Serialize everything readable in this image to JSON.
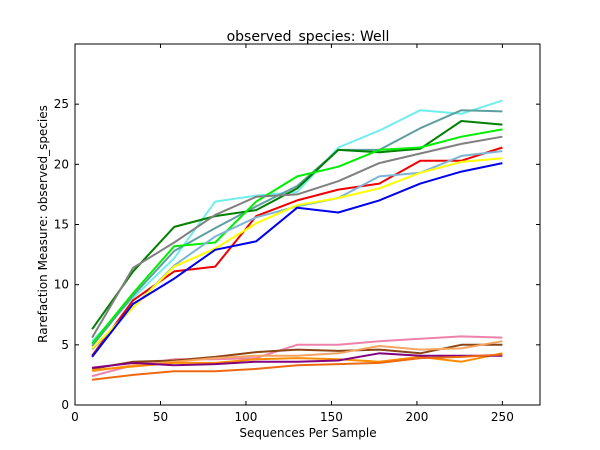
{
  "chart_data": {
    "type": "line",
    "title": "observed_species: Well",
    "xlabel": "Sequences Per Sample",
    "ylabel": "Rarefaction Measure: observed_species",
    "xlim": [
      0,
      272
    ],
    "ylim": [
      0,
      30
    ],
    "xticks": [
      0,
      50,
      100,
      150,
      200,
      250
    ],
    "yticks": [
      0,
      5,
      10,
      15,
      20,
      25
    ],
    "grid": false,
    "x": [
      10,
      34,
      58,
      82,
      106,
      130,
      154,
      178,
      202,
      226,
      250
    ],
    "series": [
      {
        "color": "#70eeee",
        "values": [
          5.3,
          8.9,
          12.2,
          16.9,
          17.4,
          17.7,
          21.4,
          22.8,
          24.5,
          24.2,
          25.3
        ]
      },
      {
        "color": "#5f9ea0",
        "values": [
          4.9,
          9.1,
          12.8,
          14.7,
          16.5,
          18.2,
          21.2,
          21.2,
          23.0,
          24.5,
          24.4
        ]
      },
      {
        "color": "#008000",
        "values": [
          6.3,
          11.1,
          14.8,
          15.7,
          16.2,
          18.0,
          21.2,
          21.0,
          21.3,
          23.6,
          23.3
        ]
      },
      {
        "color": "#00ee00",
        "values": [
          5.1,
          9.3,
          13.2,
          13.5,
          16.9,
          19.0,
          19.8,
          21.2,
          21.4,
          22.3,
          22.9
        ]
      },
      {
        "color": "#808080",
        "values": [
          5.6,
          11.4,
          13.5,
          15.8,
          17.3,
          17.5,
          18.6,
          20.1,
          20.9,
          21.7,
          22.3
        ]
      },
      {
        "color": "#ee0000",
        "values": [
          4.1,
          8.7,
          11.1,
          11.5,
          15.7,
          17.0,
          17.9,
          18.4,
          20.3,
          20.3,
          21.4
        ]
      },
      {
        "color": "#7fb4d4",
        "values": [
          4.6,
          8.1,
          11.6,
          14.0,
          15.6,
          16.5,
          17.2,
          19.0,
          19.3,
          20.7,
          21.1
        ]
      },
      {
        "color": "#ffff00",
        "values": [
          4.7,
          8.1,
          11.5,
          13.0,
          15.1,
          16.6,
          17.2,
          18.0,
          19.3,
          20.2,
          20.5
        ]
      },
      {
        "color": "#0000ee",
        "values": [
          4.0,
          8.4,
          10.5,
          12.9,
          13.6,
          16.4,
          16.0,
          17.0,
          18.4,
          19.4,
          20.1
        ]
      },
      {
        "color": "#ee82aa",
        "values": [
          2.4,
          3.3,
          3.8,
          3.8,
          3.9,
          5.0,
          5.0,
          5.3,
          5.5,
          5.7,
          5.6
        ]
      },
      {
        "color": "#8b4513",
        "values": [
          3.0,
          3.6,
          3.7,
          4.0,
          4.4,
          4.6,
          4.5,
          4.6,
          4.3,
          5.0,
          5.0
        ]
      },
      {
        "color": "#f4a460",
        "values": [
          2.8,
          3.3,
          3.6,
          3.9,
          4.1,
          4.1,
          4.3,
          4.9,
          4.6,
          4.7,
          5.3
        ]
      },
      {
        "color": "#ff8c00",
        "values": [
          2.9,
          3.2,
          3.5,
          3.5,
          3.8,
          3.9,
          3.8,
          3.6,
          4.0,
          3.6,
          4.3
        ]
      },
      {
        "color": "#800080",
        "values": [
          3.1,
          3.5,
          3.3,
          3.4,
          3.6,
          3.6,
          3.7,
          4.3,
          4.1,
          4.1,
          4.1
        ]
      },
      {
        "color": "#ee6a10",
        "values": [
          2.1,
          2.5,
          2.8,
          2.8,
          3.0,
          3.3,
          3.4,
          3.5,
          3.9,
          4.0,
          4.2
        ]
      }
    ]
  }
}
